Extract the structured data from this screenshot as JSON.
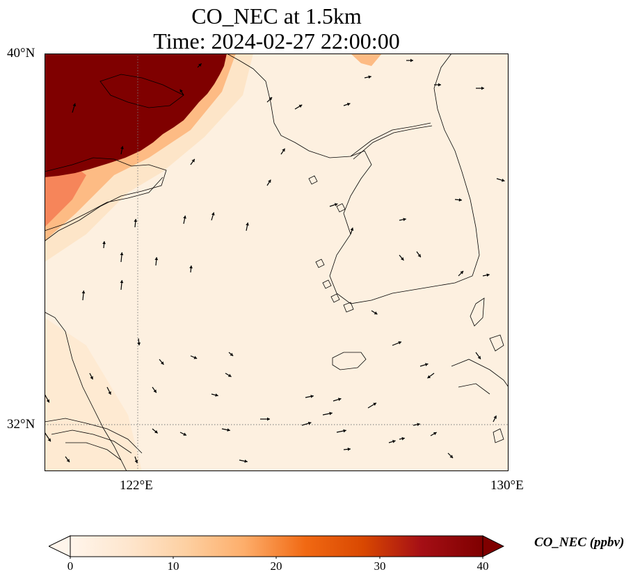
{
  "title_line1": "CO_NEC at 1.5km",
  "title_line2": "Time: 2024-02-27 22:00:00",
  "map": {
    "lon_range": [
      119.9,
      130.0
    ],
    "lat_range": [
      31.0,
      40.0
    ],
    "lat_ticks": [
      {
        "value": 40,
        "label": "40°N"
      },
      {
        "value": 32,
        "label": "32°N"
      }
    ],
    "lon_ticks": [
      {
        "value": 122,
        "label": "122°E"
      },
      {
        "value": 130,
        "label": "130°E"
      }
    ],
    "gridline_lon": 122,
    "gridline_lat": 32,
    "field_colors": [
      "#fff5eb",
      "#fdd49e",
      "#fc8d59",
      "#d7301f",
      "#7f0000"
    ]
  },
  "colorbar": {
    "label": "CO_NEC (ppbv)",
    "min": 0,
    "max": 40,
    "ticks": [
      "0",
      "10",
      "20",
      "30",
      "40"
    ],
    "colors": [
      "#fff5eb",
      "#fee6ce",
      "#fdd0a2",
      "#fdae6b",
      "#f16913",
      "#d94801",
      "#a50f15",
      "#7f0000"
    ]
  }
}
